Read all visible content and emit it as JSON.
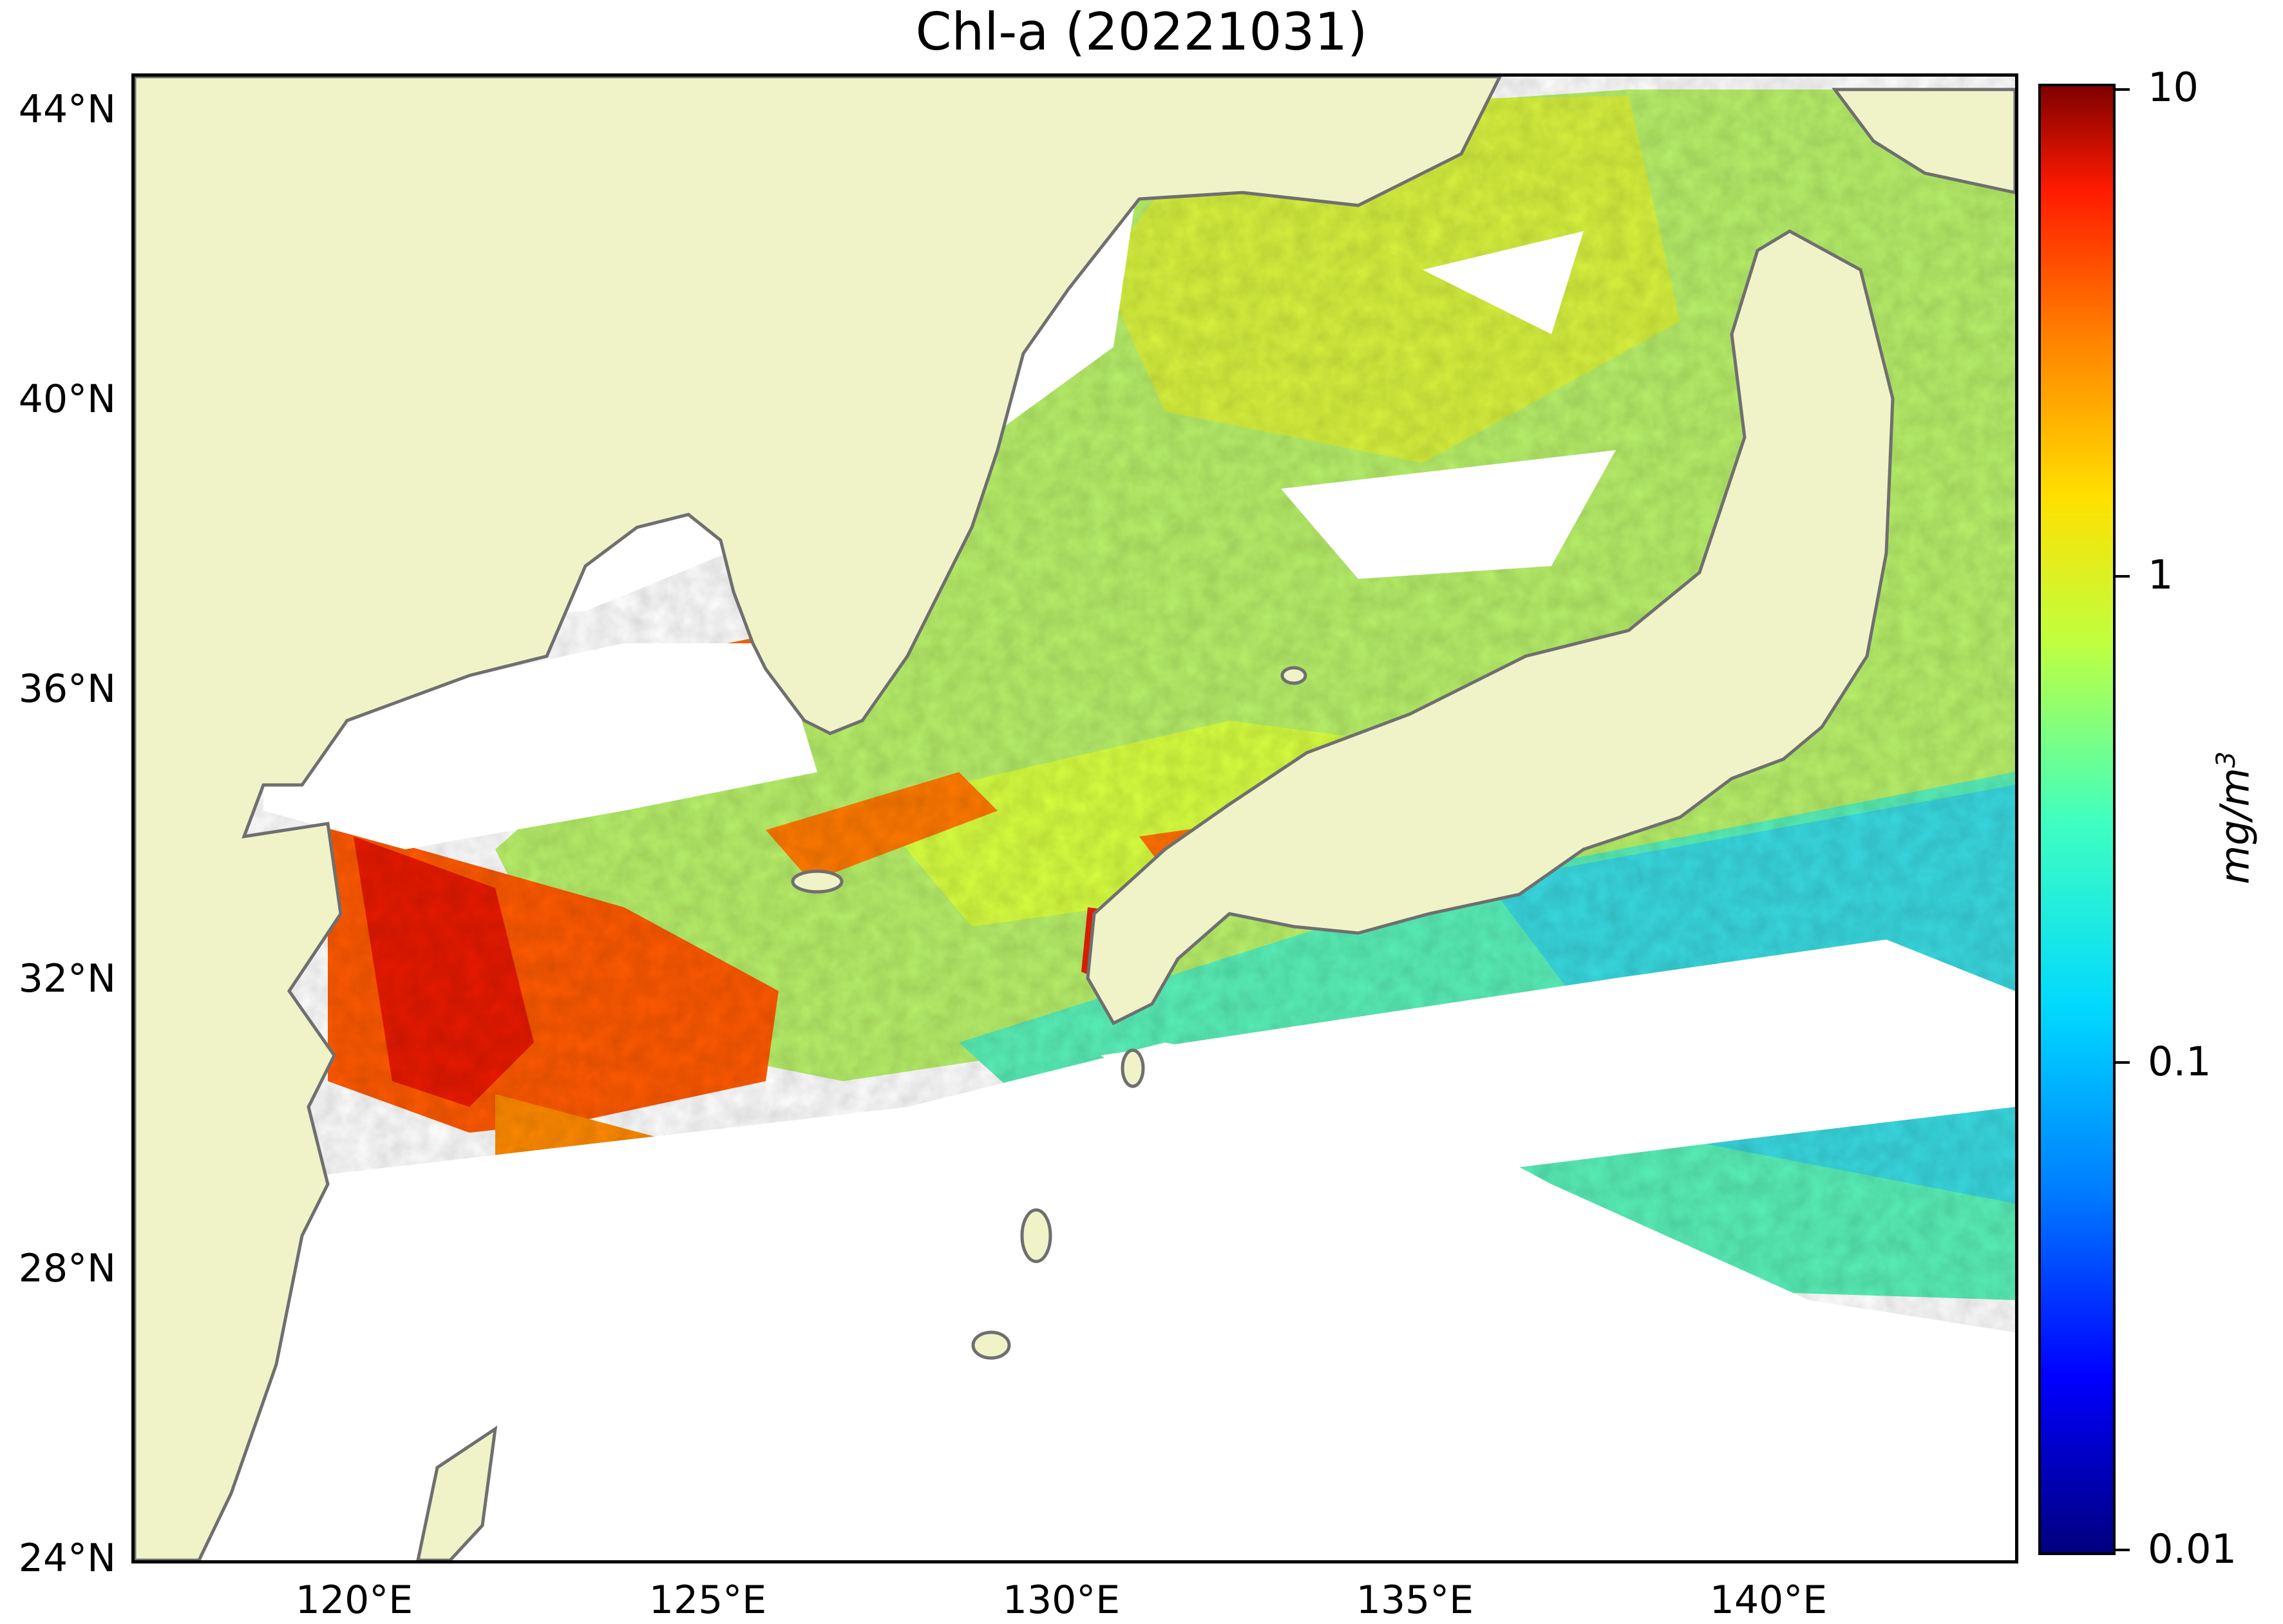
{
  "title": "Chl-a (20221031)",
  "map": {
    "extent": {
      "lon": [
        117,
        143
      ],
      "lat": [
        24,
        44.5
      ]
    },
    "land_color": "#f0f3c8",
    "coastline_color": "#6f6f6f",
    "no_data_color": "#ffffff",
    "lat_labels": [
      "44°N",
      "40°N",
      "36°N",
      "32°N",
      "28°N",
      "24°N"
    ],
    "lon_labels": [
      "120°E",
      "125°E",
      "130°E",
      "135°E",
      "140°E"
    ]
  },
  "colorbar": {
    "scale": "log",
    "colormap": "jet",
    "range": [
      0.01,
      10
    ],
    "tick_labels": [
      "10",
      "1",
      "0.1",
      "0.01"
    ],
    "unit_label": "mg/m",
    "unit_exponent": "3"
  }
}
